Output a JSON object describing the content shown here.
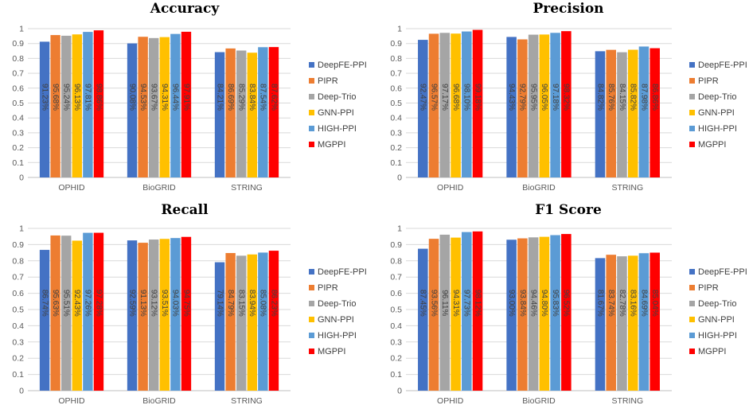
{
  "chart_data": [
    {
      "type": "bar",
      "title": "Accuracy",
      "categories": [
        "OPHID",
        "BioGRID",
        "STRING"
      ],
      "ylim": [
        0,
        1
      ],
      "yticks": [
        "0",
        "0.1",
        "0.2",
        "0.3",
        "0.4",
        "0.5",
        "0.6",
        "0.7",
        "0.8",
        "0.9",
        "1"
      ],
      "series": [
        {
          "name": "DeepFE-PPI",
          "values": [
            0.9123,
            0.9008,
            0.8421
          ],
          "labels": [
            "91.23%",
            "90.08%",
            "84.21%"
          ]
        },
        {
          "name": "PIPR",
          "values": [
            0.9568,
            0.9453,
            0.8669
          ],
          "labels": [
            "95.68%",
            "94.53%",
            "86.69%"
          ]
        },
        {
          "name": "Deep-Trio",
          "values": [
            0.9524,
            0.9367,
            0.8529
          ],
          "labels": [
            "95.24%",
            "93.67%",
            "85.29%"
          ]
        },
        {
          "name": "GNN-PPI",
          "values": [
            0.9613,
            0.9431,
            0.8384
          ],
          "labels": [
            "96.13%",
            "94.31%",
            "83.84%"
          ]
        },
        {
          "name": "HIGH-PPI",
          "values": [
            0.9781,
            0.9644,
            0.8754
          ],
          "labels": [
            "97.81%",
            "96.44%",
            "87.54%"
          ]
        },
        {
          "name": "MGPPI",
          "values": [
            0.9886,
            0.9791,
            0.8762
          ],
          "labels": [
            "98.86%",
            "97.91%",
            "87.62%"
          ]
        }
      ]
    },
    {
      "type": "bar",
      "title": "Precision",
      "categories": [
        "OPHID",
        "BioGRID",
        "STRING"
      ],
      "ylim": [
        0,
        1
      ],
      "yticks": [
        "0",
        "0.1",
        "0.2",
        "0.3",
        "0.4",
        "0.5",
        "0.6",
        "0.7",
        "0.8",
        "0.9",
        "1"
      ],
      "series": [
        {
          "name": "DeepFE-PPI",
          "values": [
            0.9247,
            0.9443,
            0.8482
          ],
          "labels": [
            "92.47%",
            "94.43%",
            "84.82%"
          ]
        },
        {
          "name": "PIPR",
          "values": [
            0.9657,
            0.9279,
            0.8576
          ],
          "labels": [
            "96.57%",
            "92.79%",
            "85.76%"
          ]
        },
        {
          "name": "Deep-Trio",
          "values": [
            0.9717,
            0.9595,
            0.8415
          ],
          "labels": [
            "97.17%",
            "95.95%",
            "84.15%"
          ]
        },
        {
          "name": "GNN-PPI",
          "values": [
            0.9668,
            0.9605,
            0.8582
          ],
          "labels": [
            "96.68%",
            "96.05%",
            "85.82%"
          ]
        },
        {
          "name": "HIGH-PPI",
          "values": [
            0.981,
            0.9718,
            0.8798
          ],
          "labels": [
            "98.10%",
            "97.18%",
            "87.98%"
          ]
        },
        {
          "name": "MGPPI",
          "values": [
            0.9918,
            0.9832,
            0.8686
          ],
          "labels": [
            "99.18%",
            "98.32%",
            "86.86%"
          ]
        }
      ]
    },
    {
      "type": "bar",
      "title": "Recall",
      "categories": [
        "OPHID",
        "BioGRID",
        "STRING"
      ],
      "ylim": [
        0,
        1
      ],
      "yticks": [
        "0",
        "0.1",
        "0.2",
        "0.3",
        "0.4",
        "0.5",
        "0.6",
        "0.7",
        "0.8",
        "0.9",
        "1"
      ],
      "series": [
        {
          "name": "DeepFE-PPI",
          "values": [
            0.8674,
            0.9259,
            0.7914
          ],
          "labels": [
            "86.74%",
            "92.59%",
            "79.14%"
          ]
        },
        {
          "name": "PIPR",
          "values": [
            0.9563,
            0.9113,
            0.8479
          ],
          "labels": [
            "95.63%",
            "91.13%",
            "84.79%"
          ]
        },
        {
          "name": "Deep-Trio",
          "values": [
            0.9551,
            0.9312,
            0.8315
          ],
          "labels": [
            "95.51%",
            "93.12%",
            "83.15%"
          ]
        },
        {
          "name": "GNN-PPI",
          "values": [
            0.9243,
            0.9351,
            0.8394
          ],
          "labels": [
            "92.43%",
            "93.51%",
            "83.94%"
          ]
        },
        {
          "name": "HIGH-PPI",
          "values": [
            0.9726,
            0.9403,
            0.8508
          ],
          "labels": [
            "97.26%",
            "94.03%",
            "85.08%"
          ]
        },
        {
          "name": "MGPPI",
          "values": [
            0.9728,
            0.9475,
            0.8623
          ],
          "labels": [
            "97.28%",
            "94.75%",
            "86.23%"
          ]
        }
      ]
    },
    {
      "type": "bar",
      "title": "F1 Score",
      "categories": [
        "OPHID",
        "BioGRID",
        "STRING"
      ],
      "ylim": [
        0,
        1
      ],
      "yticks": [
        "0",
        "0.1",
        "0.2",
        "0.3",
        "0.4",
        "0.5",
        "0.6",
        "0.7",
        "0.8",
        "0.9",
        "1"
      ],
      "series": [
        {
          "name": "DeepFE-PPI",
          "values": [
            0.8745,
            0.93,
            0.8167
          ],
          "labels": [
            "87.45%",
            "93.00%",
            "81.67%"
          ]
        },
        {
          "name": "PIPR",
          "values": [
            0.9356,
            0.9384,
            0.8374
          ],
          "labels": [
            "93.56%",
            "93.84%",
            "83.74%"
          ]
        },
        {
          "name": "Deep-Trio",
          "values": [
            0.9611,
            0.9446,
            0.8278
          ],
          "labels": [
            "96.11%",
            "94.46%",
            "82.78%"
          ]
        },
        {
          "name": "GNN-PPI",
          "values": [
            0.9431,
            0.948,
            0.8316
          ],
          "labels": [
            "94.31%",
            "94.80%",
            "83.16%"
          ]
        },
        {
          "name": "HIGH-PPI",
          "values": [
            0.9773,
            0.9583,
            0.8469
          ],
          "labels": [
            "97.73%",
            "95.83%",
            "84.69%"
          ]
        },
        {
          "name": "MGPPI",
          "values": [
            0.9812,
            0.9652,
            0.8504
          ],
          "labels": [
            "98.12%",
            "96.52%",
            "85.04%"
          ]
        }
      ]
    }
  ],
  "colors": {
    "DeepFE-PPI": "#4472C4",
    "PIPR": "#ED7D31",
    "Deep-Trio": "#A5A5A5",
    "GNN-PPI": "#FFC000",
    "HIGH-PPI": "#5B9BD5",
    "MGPPI": "#FF0000"
  },
  "gridColor": "#D9D9D9",
  "axisColor": "#BFBFBF"
}
